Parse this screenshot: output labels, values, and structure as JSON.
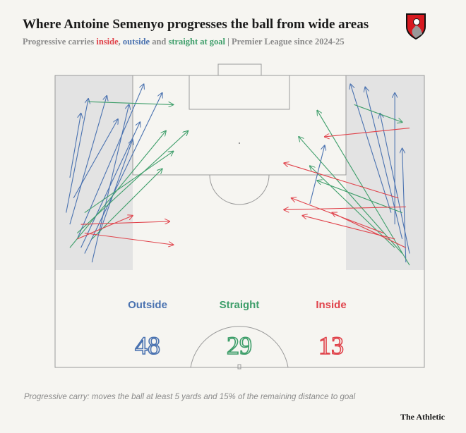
{
  "title": "Where Antoine Semenyo progresses the ball from wide areas",
  "subtitle": {
    "prefix": "Progressive carries ",
    "inside": "inside",
    "sep1": ", ",
    "outside": "outside",
    "sep2": " and ",
    "straight": "straight at goal",
    "suffix": " | Premier League since 2024-25"
  },
  "logo": "AFC Bournemouth crest",
  "colors": {
    "outside": "#4a72b0",
    "straight": "#3e9e6a",
    "inside": "#e0434b",
    "wide_area": "#e3e3e3",
    "lines": "#9a9a9a"
  },
  "chart_data": {
    "type": "pitch-arrows",
    "coordinate_note": "x 0-100 across pitch width, y 0-100 from goal line to halfway line",
    "categories": [
      {
        "key": "outside",
        "label": "Outside",
        "count": "48"
      },
      {
        "key": "straight",
        "label": "Straight",
        "count": "29"
      },
      {
        "key": "inside",
        "label": "Inside",
        "count": "13"
      }
    ],
    "carries": [
      {
        "type": "outside",
        "from": [
          6,
          56
        ],
        "to": [
          24,
          3
        ]
      },
      {
        "type": "outside",
        "from": [
          4,
          51
        ],
        "to": [
          14,
          7
        ]
      },
      {
        "type": "outside",
        "from": [
          8,
          61
        ],
        "to": [
          29,
          6
        ]
      },
      {
        "type": "outside",
        "from": [
          3,
          47
        ],
        "to": [
          9,
          8
        ]
      },
      {
        "type": "outside",
        "from": [
          10,
          64
        ],
        "to": [
          20,
          10
        ]
      },
      {
        "type": "outside",
        "from": [
          5,
          42
        ],
        "to": [
          17,
          15
        ]
      },
      {
        "type": "outside",
        "from": [
          7,
          59
        ],
        "to": [
          23,
          16
        ]
      },
      {
        "type": "outside",
        "from": [
          12,
          54
        ],
        "to": [
          21,
          22
        ]
      },
      {
        "type": "outside",
        "from": [
          4,
          35
        ],
        "to": [
          7,
          13
        ]
      },
      {
        "type": "straight",
        "from": [
          4,
          59
        ],
        "to": [
          30,
          19
        ]
      },
      {
        "type": "straight",
        "from": [
          6,
          54
        ],
        "to": [
          36,
          19
        ]
      },
      {
        "type": "straight",
        "from": [
          8,
          47
        ],
        "to": [
          32,
          26
        ]
      },
      {
        "type": "straight",
        "from": [
          10,
          56
        ],
        "to": [
          29,
          32
        ]
      },
      {
        "type": "straight",
        "from": [
          9,
          9
        ],
        "to": [
          32,
          10
        ]
      },
      {
        "type": "inside",
        "from": [
          7,
          51
        ],
        "to": [
          31,
          50
        ]
      },
      {
        "type": "inside",
        "from": [
          8,
          54
        ],
        "to": [
          32,
          58
        ]
      },
      {
        "type": "inside",
        "from": [
          6,
          56
        ],
        "to": [
          21,
          48
        ]
      },
      {
        "type": "outside",
        "from": [
          94,
          56
        ],
        "to": [
          84,
          4
        ]
      },
      {
        "type": "outside",
        "from": [
          92,
          51
        ],
        "to": [
          92,
          6
        ]
      },
      {
        "type": "outside",
        "from": [
          96,
          61
        ],
        "to": [
          88,
          13
        ]
      },
      {
        "type": "outside",
        "from": [
          91,
          47
        ],
        "to": [
          80,
          3
        ]
      },
      {
        "type": "outside",
        "from": [
          69,
          44
        ],
        "to": [
          73,
          24
        ]
      },
      {
        "type": "outside",
        "from": [
          95,
          64
        ],
        "to": [
          94,
          25
        ]
      },
      {
        "type": "straight",
        "from": [
          96,
          65
        ],
        "to": [
          71,
          12
        ]
      },
      {
        "type": "straight",
        "from": [
          94,
          61
        ],
        "to": [
          66,
          21
        ]
      },
      {
        "type": "straight",
        "from": [
          92,
          59
        ],
        "to": [
          69,
          31
        ]
      },
      {
        "type": "straight",
        "from": [
          81,
          10
        ],
        "to": [
          94,
          16
        ]
      },
      {
        "type": "straight",
        "from": [
          94,
          47
        ],
        "to": [
          71,
          36
        ]
      },
      {
        "type": "inside",
        "from": [
          95,
          45
        ],
        "to": [
          62,
          46
        ]
      },
      {
        "type": "inside",
        "from": [
          93,
          42
        ],
        "to": [
          62,
          30
        ]
      },
      {
        "type": "inside",
        "from": [
          96,
          18
        ],
        "to": [
          73,
          21
        ]
      },
      {
        "type": "inside",
        "from": [
          92,
          56
        ],
        "to": [
          67,
          48
        ]
      },
      {
        "type": "inside",
        "from": [
          89,
          54
        ],
        "to": [
          64,
          42
        ]
      },
      {
        "type": "inside",
        "from": [
          95,
          59
        ],
        "to": [
          75,
          47
        ]
      }
    ]
  },
  "footnote": "Progressive carry: moves the ball at least 5 yards and 15% of the remaining distance to goal",
  "brand": "The Athletic"
}
